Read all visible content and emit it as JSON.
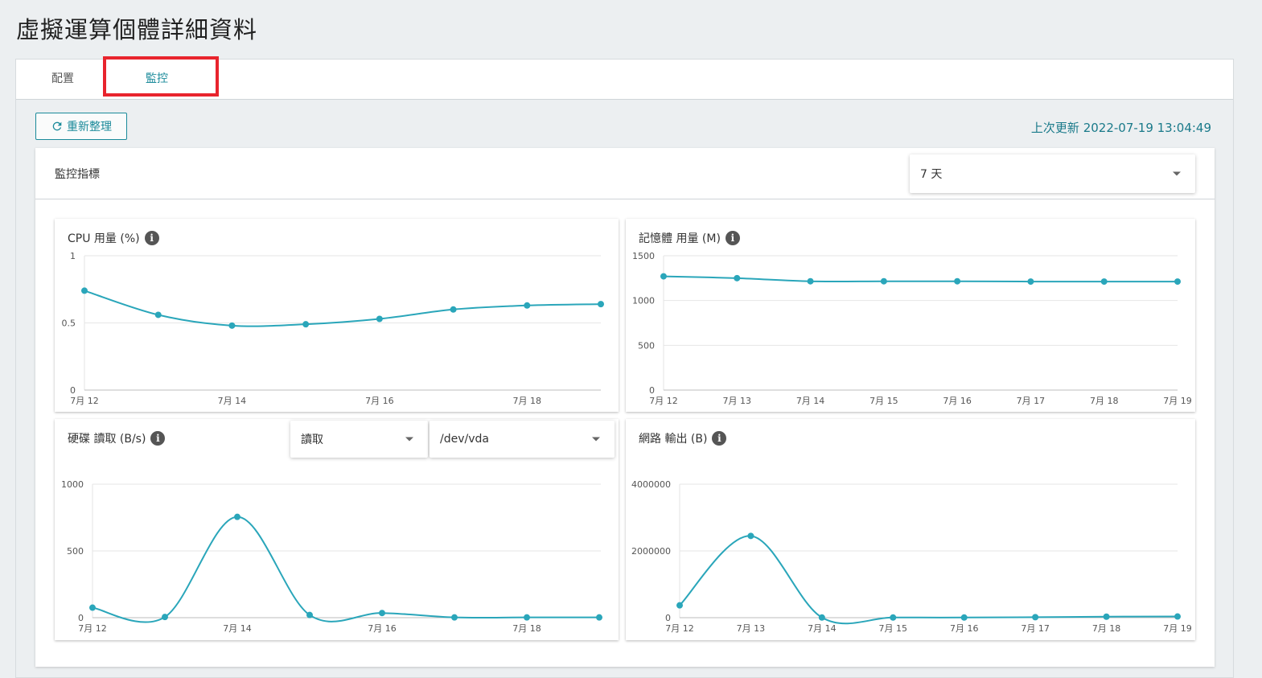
{
  "page": {
    "title": "虛擬運算個體詳細資料"
  },
  "tabs": [
    {
      "label": "配置",
      "active": false
    },
    {
      "label": "監控",
      "active": true
    }
  ],
  "toolbar": {
    "refresh_label": "重新整理",
    "last_update": "上次更新 2022-07-19 13:04:49"
  },
  "metrics": {
    "label": "監控指標",
    "range_value": "7 天"
  },
  "disk_controls": {
    "mode_value": "讀取",
    "device_value": "/dev/vda"
  },
  "colors": {
    "accent": "#1a8a9a",
    "line": "#2aa6ba",
    "highlight": "#e8242d"
  },
  "chart_data": [
    {
      "id": "cpu",
      "type": "line",
      "title": "CPU 用量 (%)",
      "x": [
        "7月 12",
        "7月 13",
        "7月 14",
        "7月 15",
        "7月 16",
        "7月 17",
        "7月 18",
        "7月 19"
      ],
      "x_tick_labels": [
        "7月 12",
        "7月 14",
        "7月 16",
        "7月 18"
      ],
      "y_ticks": [
        "0",
        "0.5",
        "1"
      ],
      "ylim": [
        0,
        1
      ],
      "values": [
        0.74,
        0.56,
        0.48,
        0.49,
        0.53,
        0.6,
        0.63,
        0.64
      ]
    },
    {
      "id": "memory",
      "type": "line",
      "title": "記憶體 用量 (M)",
      "x": [
        "7月 12",
        "7月 13",
        "7月 14",
        "7月 15",
        "7月 16",
        "7月 17",
        "7月 18",
        "7月 19"
      ],
      "x_tick_labels": [
        "7月 12",
        "7月 13",
        "7月 14",
        "7月 15",
        "7月 16",
        "7月 17",
        "7月 18",
        "7月 19"
      ],
      "y_ticks": [
        "0",
        "500",
        "1000",
        "1500"
      ],
      "ylim": [
        0,
        1500
      ],
      "values": [
        1270,
        1250,
        1215,
        1215,
        1215,
        1212,
        1212,
        1212
      ]
    },
    {
      "id": "disk",
      "type": "line",
      "title": "硬碟 讀取 (B/s)",
      "x": [
        "7月 12",
        "7月 13",
        "7月 14",
        "7月 15",
        "7月 16",
        "7月 17",
        "7月 18",
        "7月 19"
      ],
      "x_tick_labels": [
        "7月 12",
        "7月 14",
        "7月 16",
        "7月 18"
      ],
      "y_ticks": [
        "0",
        "500",
        "1000"
      ],
      "ylim": [
        0,
        1000
      ],
      "values": [
        75,
        5,
        755,
        20,
        35,
        2,
        2,
        2
      ]
    },
    {
      "id": "network",
      "type": "line",
      "title": "網路 輸出 (B)",
      "x": [
        "7月 12",
        "7月 13",
        "7月 14",
        "7月 15",
        "7月 16",
        "7月 17",
        "7月 18",
        "7月 19"
      ],
      "x_tick_labels": [
        "7月 12",
        "7月 13",
        "7月 14",
        "7月 15",
        "7月 16",
        "7月 17",
        "7月 18",
        "7月 19"
      ],
      "y_ticks": [
        "0",
        "2000000",
        "4000000"
      ],
      "ylim": [
        0,
        4000000
      ],
      "values": [
        370000,
        2450000,
        5000,
        5000,
        5000,
        15000,
        30000,
        35000
      ]
    }
  ]
}
